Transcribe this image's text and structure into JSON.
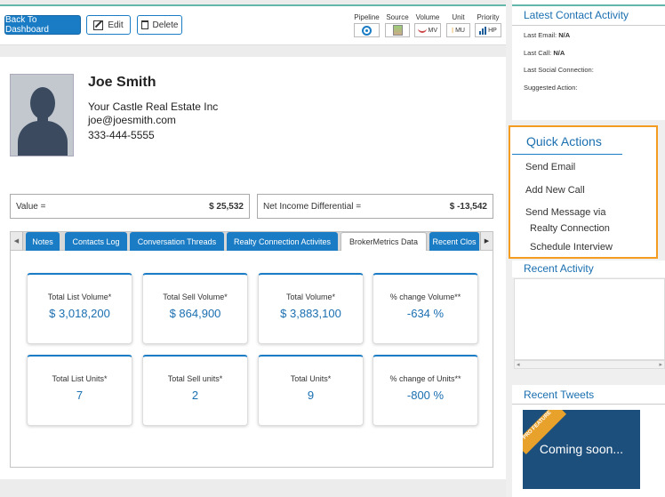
{
  "toolbar": {
    "back_label": "Back To Dashboard",
    "edit_label": "Edit",
    "delete_label": "Delete"
  },
  "metrics": [
    {
      "label": "Pipeline",
      "value": ""
    },
    {
      "label": "Source",
      "value": ""
    },
    {
      "label": "Volume",
      "value": "MV"
    },
    {
      "label": "Unit",
      "value": "MU"
    },
    {
      "label": "Priority",
      "value": "HP"
    }
  ],
  "contact": {
    "name": "Joe Smith",
    "company": "Your Castle Real Estate Inc",
    "email": "joe@joesmith.com",
    "phone": "333-444-5555"
  },
  "values": {
    "value_label": "Value =",
    "value_amount": "$ 25,532",
    "net_label": "Net Income Differential =",
    "net_amount": "$ -13,542"
  },
  "tabs": [
    {
      "label": "Notes",
      "active": false
    },
    {
      "label": "Contacts Log",
      "active": false
    },
    {
      "label": "Conversation Threads",
      "active": false
    },
    {
      "label": "Realty Connection Activites",
      "active": false
    },
    {
      "label": "BrokerMetrics Data",
      "active": true
    },
    {
      "label": "Recent Clos",
      "active": false
    }
  ],
  "tab_arrows": {
    "left": "◀",
    "right": "▶"
  },
  "cards": [
    {
      "label": "Total List Volume*",
      "value": "$ 3,018,200"
    },
    {
      "label": "Total Sell Volume*",
      "value": "$ 864,900"
    },
    {
      "label": "Total Volume*",
      "value": "$ 3,883,100"
    },
    {
      "label": "% change Volume**",
      "value": "-634 %"
    },
    {
      "label": "Total List Units*",
      "value": "7"
    },
    {
      "label": "Total Sell units*",
      "value": "2"
    },
    {
      "label": "Total Units*",
      "value": "9"
    },
    {
      "label": "% change of Units**",
      "value": "-800 %"
    }
  ],
  "sidebar": {
    "latest_title": "Latest Contact Activity",
    "last_email_label": "Last Email:",
    "last_email_value": "N/A",
    "last_call_label": "Last Call:",
    "last_call_value": "N/A",
    "last_social_label": "Last Social Connection:",
    "suggested_label": "Suggested Action:",
    "quick_title": "Quick Actions",
    "quick_items": [
      "Send Email",
      "Add New Call",
      "Send Message via",
      "Realty Connection",
      "Schedule Interview"
    ],
    "recent_activity_title": "Recent Activity",
    "recent_tweets_title": "Recent Tweets",
    "promo_ribbon": "PRO FEATURE",
    "promo_text": "Coming soon...",
    "scroll_left": "◂",
    "scroll_right": "▸"
  },
  "colors": {
    "accent": "#1a7cc4",
    "highlight_border": "#f39c1f",
    "top_rule": "#62b7a8"
  }
}
